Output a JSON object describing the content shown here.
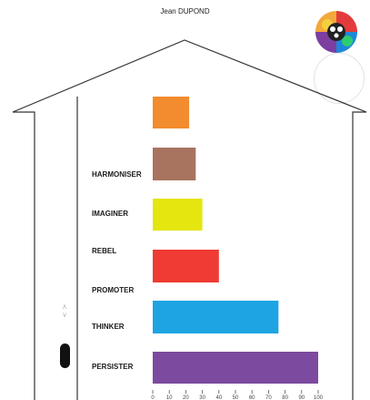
{
  "user": {
    "name": "Jean DUPOND"
  },
  "chart_data": {
    "type": "bar",
    "orientation": "horizontal",
    "bars": [
      {
        "label": "",
        "value": 22,
        "color": "#f28c2e"
      },
      {
        "label": "HARMONISER",
        "value": 26,
        "color": "#a8735f"
      },
      {
        "label": "IMAGINER",
        "value": 30,
        "color": "#e5e510"
      },
      {
        "label": "REBEL",
        "value": 40,
        "color": "#ef3b33"
      },
      {
        "label": "PROMOTER",
        "value": null,
        "color": ""
      },
      {
        "label": "THINKER",
        "value": 76,
        "color": "#1ea4e3"
      },
      {
        "label": "PERSISTER",
        "value": 100,
        "color": "#7c4a9e"
      }
    ],
    "xlim": [
      0,
      100
    ],
    "xticks": [
      "0",
      "10",
      "20",
      "30",
      "40",
      "50",
      "60",
      "70",
      "80",
      "90",
      "100"
    ],
    "grid": false,
    "legend": "none"
  },
  "icons": {
    "avatar": "avatar-icon",
    "scroll_up": "chevron-up-icon",
    "scroll_down": "chevron-down-icon"
  }
}
